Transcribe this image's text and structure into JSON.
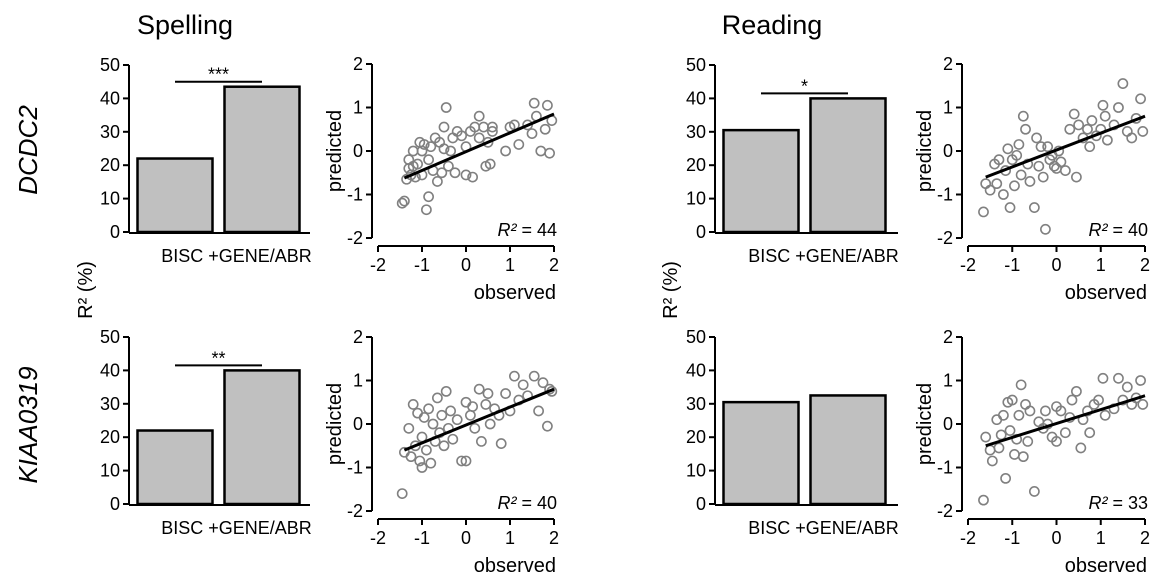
{
  "sections": [
    {
      "title": "Spelling"
    },
    {
      "title": "Reading"
    }
  ],
  "rows": [
    {
      "gene": "DCDC2"
    },
    {
      "gene": "KIAA0319"
    }
  ],
  "shared_ylabel": "R² (%)",
  "chart_data": [
    {
      "type": "bar",
      "panel": "Spelling / DCDC2",
      "categories": [
        "BISC",
        "+GENE/ABR"
      ],
      "values": [
        22,
        43.5
      ],
      "ylim": [
        0,
        50
      ],
      "yticks": [
        0,
        10,
        20,
        30,
        40,
        50
      ],
      "significance": "***",
      "color": "#c0c0c0"
    },
    {
      "type": "scatter",
      "panel": "Spelling / DCDC2",
      "xlabel": "observed",
      "ylabel": "predicted",
      "xlim": [
        -2,
        2
      ],
      "ylim": [
        -2,
        2
      ],
      "xticks": [
        -2,
        -1,
        0,
        1,
        2
      ],
      "yticks": [
        -2,
        -1,
        0,
        1,
        2
      ],
      "annotation": "R² = 44",
      "fit_line": [
        [
          -1.4,
          -0.62
        ],
        [
          2.0,
          0.85
        ]
      ],
      "points": [
        [
          -1.45,
          -1.2
        ],
        [
          -1.4,
          -1.15
        ],
        [
          -1.35,
          -0.65
        ],
        [
          -1.3,
          -0.4
        ],
        [
          -1.3,
          -0.2
        ],
        [
          -1.25,
          -0.55
        ],
        [
          -1.2,
          -0.35
        ],
        [
          -1.2,
          0.0
        ],
        [
          -1.15,
          -0.6
        ],
        [
          -1.1,
          -0.3
        ],
        [
          -1.05,
          0.2
        ],
        [
          -1.0,
          -0.55
        ],
        [
          -1.0,
          0.0
        ],
        [
          -0.95,
          0.15
        ],
        [
          -0.9,
          -1.35
        ],
        [
          -0.85,
          -1.05
        ],
        [
          -0.85,
          -0.2
        ],
        [
          -0.8,
          0.1
        ],
        [
          -0.75,
          -0.45
        ],
        [
          -0.7,
          0.3
        ],
        [
          -0.65,
          -0.7
        ],
        [
          -0.6,
          0.2
        ],
        [
          -0.55,
          -0.5
        ],
        [
          -0.5,
          0.05
        ],
        [
          -0.5,
          0.55
        ],
        [
          -0.45,
          1.0
        ],
        [
          -0.4,
          -0.35
        ],
        [
          -0.35,
          0.0
        ],
        [
          -0.3,
          0.3
        ],
        [
          -0.25,
          -0.5
        ],
        [
          -0.2,
          0.45
        ],
        [
          -0.1,
          0.35
        ],
        [
          0.0,
          -0.55
        ],
        [
          0.0,
          0.1
        ],
        [
          0.1,
          0.45
        ],
        [
          0.15,
          -0.6
        ],
        [
          0.2,
          0.55
        ],
        [
          0.3,
          0.8
        ],
        [
          0.3,
          0.3
        ],
        [
          0.4,
          0.55
        ],
        [
          0.45,
          -0.35
        ],
        [
          0.5,
          0.2
        ],
        [
          0.55,
          -0.3
        ],
        [
          0.6,
          0.55
        ],
        [
          0.6,
          0.45
        ],
        [
          0.9,
          0.0
        ],
        [
          1.0,
          0.55
        ],
        [
          1.1,
          0.6
        ],
        [
          1.2,
          0.15
        ],
        [
          1.4,
          0.6
        ],
        [
          1.5,
          0.4
        ],
        [
          1.55,
          1.1
        ],
        [
          1.6,
          0.8
        ],
        [
          1.7,
          0.0
        ],
        [
          1.8,
          0.5
        ],
        [
          1.85,
          1.05
        ],
        [
          1.9,
          -0.05
        ],
        [
          1.95,
          0.7
        ]
      ]
    },
    {
      "type": "bar",
      "panel": "Reading / DCDC2",
      "categories": [
        "BISC",
        "+GENE/ABR"
      ],
      "values": [
        30.5,
        40
      ],
      "ylim": [
        0,
        50
      ],
      "yticks": [
        0,
        10,
        20,
        30,
        40,
        50
      ],
      "significance": "*",
      "color": "#c0c0c0"
    },
    {
      "type": "scatter",
      "panel": "Reading / DCDC2",
      "xlabel": "observed",
      "ylabel": "predicted",
      "xlim": [
        -2,
        2
      ],
      "ylim": [
        -2,
        2
      ],
      "xticks": [
        -2,
        -1,
        0,
        1,
        2
      ],
      "yticks": [
        -2,
        -1,
        0,
        1,
        2
      ],
      "annotation": "R² = 40",
      "fit_line": [
        [
          -1.6,
          -0.6
        ],
        [
          2.0,
          0.8
        ]
      ],
      "points": [
        [
          -1.65,
          -1.4
        ],
        [
          -1.6,
          -0.75
        ],
        [
          -1.5,
          -0.9
        ],
        [
          -1.4,
          -0.3
        ],
        [
          -1.35,
          -0.75
        ],
        [
          -1.3,
          -0.2
        ],
        [
          -1.2,
          -1.0
        ],
        [
          -1.15,
          -0.45
        ],
        [
          -1.1,
          0.05
        ],
        [
          -1.05,
          -1.3
        ],
        [
          -1.0,
          -0.2
        ],
        [
          -0.95,
          -0.8
        ],
        [
          -0.9,
          -0.1
        ],
        [
          -0.85,
          0.15
        ],
        [
          -0.8,
          -0.55
        ],
        [
          -0.75,
          0.8
        ],
        [
          -0.7,
          0.5
        ],
        [
          -0.65,
          -0.3
        ],
        [
          -0.6,
          -0.7
        ],
        [
          -0.5,
          -1.3
        ],
        [
          -0.45,
          0.3
        ],
        [
          -0.4,
          -0.35
        ],
        [
          -0.35,
          0.1
        ],
        [
          -0.3,
          -0.6
        ],
        [
          -0.25,
          -1.8
        ],
        [
          -0.2,
          0.1
        ],
        [
          -0.15,
          -0.2
        ],
        [
          -0.1,
          -0.1
        ],
        [
          -0.05,
          -0.35
        ],
        [
          0.0,
          -0.4
        ],
        [
          0.05,
          0.0
        ],
        [
          0.1,
          -0.25
        ],
        [
          0.2,
          -0.45
        ],
        [
          0.3,
          0.5
        ],
        [
          0.4,
          0.85
        ],
        [
          0.45,
          -0.6
        ],
        [
          0.5,
          0.6
        ],
        [
          0.6,
          0.3
        ],
        [
          0.7,
          0.5
        ],
        [
          0.75,
          0.1
        ],
        [
          0.8,
          0.7
        ],
        [
          0.9,
          0.35
        ],
        [
          1.0,
          0.5
        ],
        [
          1.05,
          1.05
        ],
        [
          1.1,
          0.8
        ],
        [
          1.15,
          0.25
        ],
        [
          1.3,
          0.6
        ],
        [
          1.4,
          1.0
        ],
        [
          1.5,
          1.55
        ],
        [
          1.6,
          0.45
        ],
        [
          1.7,
          0.3
        ],
        [
          1.8,
          0.75
        ],
        [
          1.9,
          1.2
        ],
        [
          1.95,
          0.45
        ]
      ]
    },
    {
      "type": "scatter",
      "panel": "Spelling / KIAA0319",
      "xlabel": "observed",
      "ylabel": "predicted",
      "xlim": [
        -2,
        2
      ],
      "ylim": [
        -2,
        2
      ],
      "xticks": [
        -2,
        -1,
        0,
        1,
        2
      ],
      "yticks": [
        -2,
        -1,
        0,
        1,
        2
      ],
      "annotation": "R² = 40",
      "fit_line": [
        [
          -1.4,
          -0.6
        ],
        [
          2.0,
          0.8
        ]
      ],
      "points": [
        [
          -1.45,
          -1.6
        ],
        [
          -1.4,
          -0.65
        ],
        [
          -1.3,
          -0.1
        ],
        [
          -1.25,
          -0.75
        ],
        [
          -1.2,
          0.45
        ],
        [
          -1.15,
          -0.5
        ],
        [
          -1.1,
          0.25
        ],
        [
          -1.05,
          -0.85
        ],
        [
          -1.0,
          -1.0
        ],
        [
          -1.0,
          -0.3
        ],
        [
          -0.95,
          0.15
        ],
        [
          -0.9,
          -0.6
        ],
        [
          -0.85,
          0.35
        ],
        [
          -0.8,
          -0.9
        ],
        [
          -0.75,
          0.0
        ],
        [
          -0.7,
          -0.4
        ],
        [
          -0.65,
          0.6
        ],
        [
          -0.6,
          -0.2
        ],
        [
          -0.55,
          0.2
        ],
        [
          -0.5,
          -0.5
        ],
        [
          -0.45,
          0.75
        ],
        [
          -0.4,
          -0.1
        ],
        [
          -0.35,
          0.3
        ],
        [
          -0.3,
          -0.35
        ],
        [
          -0.2,
          0.1
        ],
        [
          -0.1,
          -0.85
        ],
        [
          0.0,
          -0.85
        ],
        [
          0.0,
          0.5
        ],
        [
          0.1,
          0.2
        ],
        [
          0.15,
          0.4
        ],
        [
          0.2,
          -0.1
        ],
        [
          0.3,
          0.8
        ],
        [
          0.35,
          -0.4
        ],
        [
          0.45,
          0.45
        ],
        [
          0.5,
          0.7
        ],
        [
          0.55,
          0.0
        ],
        [
          0.65,
          0.35
        ],
        [
          0.75,
          0.2
        ],
        [
          0.8,
          -0.45
        ],
        [
          0.9,
          0.7
        ],
        [
          1.0,
          0.3
        ],
        [
          1.1,
          1.1
        ],
        [
          1.2,
          0.55
        ],
        [
          1.3,
          0.9
        ],
        [
          1.4,
          0.65
        ],
        [
          1.55,
          1.1
        ],
        [
          1.65,
          0.3
        ],
        [
          1.75,
          0.95
        ],
        [
          1.85,
          -0.05
        ],
        [
          1.9,
          0.8
        ],
        [
          1.95,
          0.75
        ]
      ]
    },
    {
      "type": "bar",
      "panel": "Spelling / KIAA0319",
      "categories": [
        "BISC",
        "+GENE/ABR"
      ],
      "values": [
        22,
        40
      ],
      "ylim": [
        0,
        50
      ],
      "yticks": [
        0,
        10,
        20,
        30,
        40,
        50
      ],
      "significance": "**",
      "color": "#c0c0c0"
    },
    {
      "type": "bar",
      "panel": "Reading / KIAA0319",
      "categories": [
        "BISC",
        "+GENE/ABR"
      ],
      "values": [
        30.5,
        32.5
      ],
      "ylim": [
        0,
        50
      ],
      "yticks": [
        0,
        10,
        20,
        30,
        40,
        50
      ],
      "significance": "",
      "color": "#c0c0c0"
    },
    {
      "type": "scatter",
      "panel": "Reading / KIAA0319",
      "xlabel": "observed",
      "ylabel": "predicted",
      "xlim": [
        -2,
        2
      ],
      "ylim": [
        -2,
        2
      ],
      "xticks": [
        -2,
        -1,
        0,
        1,
        2
      ],
      "yticks": [
        -2,
        -1,
        0,
        1,
        2
      ],
      "annotation": "R² = 33",
      "fit_line": [
        [
          -1.6,
          -0.5
        ],
        [
          2.0,
          0.65
        ]
      ],
      "points": [
        [
          -1.65,
          -1.75
        ],
        [
          -1.6,
          -0.3
        ],
        [
          -1.5,
          -0.6
        ],
        [
          -1.45,
          -0.85
        ],
        [
          -1.35,
          0.1
        ],
        [
          -1.3,
          -0.55
        ],
        [
          -1.25,
          -0.25
        ],
        [
          -1.2,
          0.2
        ],
        [
          -1.15,
          -1.25
        ],
        [
          -1.1,
          0.5
        ],
        [
          -1.05,
          -0.15
        ],
        [
          -1.0,
          0.55
        ],
        [
          -0.95,
          -0.7
        ],
        [
          -0.9,
          -0.35
        ],
        [
          -0.85,
          0.2
        ],
        [
          -0.8,
          0.9
        ],
        [
          -0.75,
          -0.75
        ],
        [
          -0.7,
          0.45
        ],
        [
          -0.65,
          -0.4
        ],
        [
          -0.6,
          0.3
        ],
        [
          -0.5,
          -1.55
        ],
        [
          -0.4,
          0.05
        ],
        [
          -0.3,
          -0.1
        ],
        [
          -0.25,
          0.3
        ],
        [
          -0.2,
          0.0
        ],
        [
          -0.1,
          -0.3
        ],
        [
          0.0,
          -0.4
        ],
        [
          0.0,
          0.4
        ],
        [
          0.1,
          0.3
        ],
        [
          0.2,
          -0.2
        ],
        [
          0.3,
          0.15
        ],
        [
          0.35,
          0.55
        ],
        [
          0.45,
          0.75
        ],
        [
          0.55,
          -0.55
        ],
        [
          0.6,
          0.1
        ],
        [
          0.7,
          0.3
        ],
        [
          0.75,
          -0.2
        ],
        [
          0.85,
          0.45
        ],
        [
          0.95,
          0.55
        ],
        [
          1.05,
          1.05
        ],
        [
          1.1,
          0.2
        ],
        [
          1.3,
          0.35
        ],
        [
          1.4,
          1.05
        ],
        [
          1.5,
          0.55
        ],
        [
          1.6,
          0.85
        ],
        [
          1.7,
          0.45
        ],
        [
          1.8,
          0.6
        ],
        [
          1.9,
          1.0
        ],
        [
          1.95,
          0.45
        ]
      ]
    }
  ]
}
